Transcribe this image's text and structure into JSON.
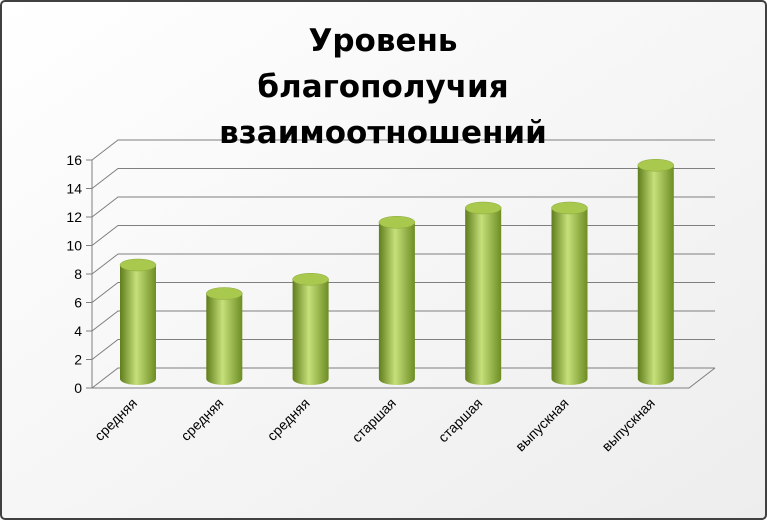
{
  "chart_data": {
    "type": "bar",
    "title": "Уровень благополучия взаимоотношений",
    "categories": [
      "средняя",
      "средняя",
      "средняя",
      "старшая",
      "старшая",
      "выпускная",
      "выпускная"
    ],
    "values": [
      8,
      6,
      7,
      11,
      12,
      12,
      15
    ],
    "color": "#8fb33a",
    "ylim": [
      0,
      16
    ],
    "yticks": [
      0,
      2,
      4,
      6,
      8,
      10,
      12,
      14,
      16
    ],
    "grid": true
  }
}
